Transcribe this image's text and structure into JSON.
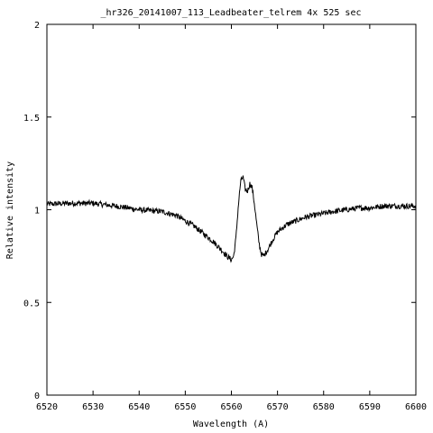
{
  "chart_data": {
    "type": "line",
    "title": "_hr326_20141007_113_Leadbeater_telrem   4x 525 sec",
    "xlabel": "Wavelength (A)",
    "ylabel": "Relative intensity",
    "xlim": [
      6520,
      6600
    ],
    "ylim": [
      0,
      2
    ],
    "x_ticks": [
      6520,
      6530,
      6540,
      6550,
      6560,
      6570,
      6580,
      6590,
      6600
    ],
    "y_ticks": [
      0,
      0.5,
      1,
      1.5,
      2
    ],
    "x_tick_labels": [
      "6520",
      "6530",
      "6540",
      "6550",
      "6560",
      "6570",
      "6580",
      "6590",
      "6600"
    ],
    "y_tick_labels": [
      "0",
      "0.5",
      "1",
      "1.5",
      "2"
    ],
    "grid": false,
    "line_color": "#000000",
    "series": [
      {
        "x": [
          6520,
          6525,
          6530,
          6535,
          6540,
          6545,
          6548,
          6550,
          6552,
          6554,
          6556,
          6558,
          6559,
          6560,
          6560.5,
          6561,
          6561.5,
          6562,
          6562.5,
          6563,
          6563.5,
          6564,
          6564.5,
          6565,
          6565.5,
          6566,
          6566.5,
          6567,
          6568,
          6569,
          6570,
          6572,
          6574,
          6576,
          6578,
          6580,
          6582,
          6585,
          6588,
          6590,
          6593,
          6596,
          6600
        ],
        "y": [
          1.03,
          1.035,
          1.035,
          1.02,
          1.0,
          0.99,
          0.97,
          0.94,
          0.91,
          0.87,
          0.83,
          0.78,
          0.75,
          0.73,
          0.75,
          0.85,
          1.02,
          1.15,
          1.18,
          1.11,
          1.1,
          1.14,
          1.12,
          1.03,
          0.92,
          0.82,
          0.76,
          0.75,
          0.79,
          0.84,
          0.88,
          0.92,
          0.94,
          0.96,
          0.97,
          0.98,
          0.99,
          1.0,
          1.01,
          1.01,
          1.02,
          1.02,
          1.02
        ]
      }
    ]
  }
}
